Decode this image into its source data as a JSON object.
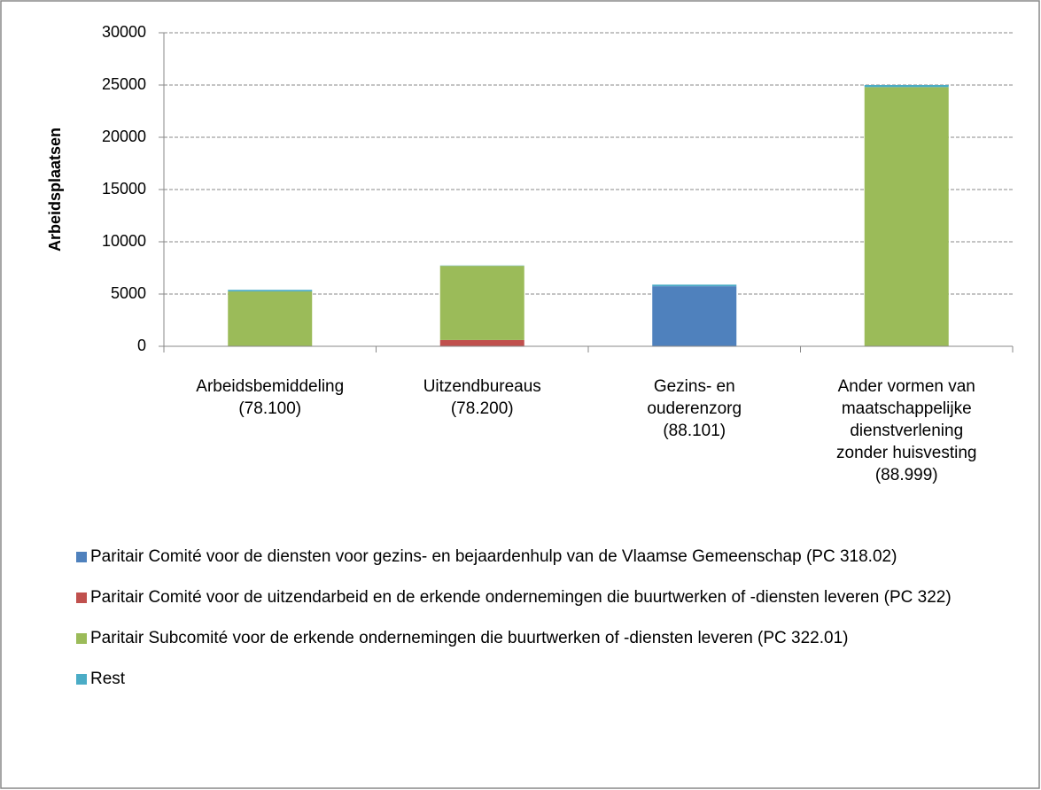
{
  "chart_data": {
    "type": "stacked_bar",
    "y_label": "Arbeidsplaatsen",
    "categories": [
      [
        "Arbeidsbemiddeling",
        "(78.100)"
      ],
      [
        "Uitzendbureaus",
        "(78.200)"
      ],
      [
        "Gezins- en",
        "ouderenzorg",
        "(88.101)"
      ],
      [
        "Ander vormen van",
        "maatschappelijke",
        "dienstverlening",
        "zonder huisvesting",
        "(88.999)"
      ]
    ],
    "series": [
      {
        "name": "Paritair Comité voor de diensten voor gezins- en bejaardenhulp van de Vlaamse Gemeenschap (PC 318.02)",
        "color": "#4f81bd",
        "values": [
          0,
          0,
          5750,
          0
        ]
      },
      {
        "name": "Paritair Comité voor de uitzendarbeid en de erkende ondernemingen die buurtwerken of -diensten leveren (PC 322)",
        "color": "#c0504d",
        "values": [
          0,
          600,
          0,
          0
        ]
      },
      {
        "name": "Paritair Subcomité voor de erkende ondernemingen die buurtwerken of -diensten leveren (PC 322.01)",
        "color": "#9bbb59",
        "values": [
          5250,
          7100,
          0,
          24800
        ]
      },
      {
        "name": "Rest",
        "color": "#4bacc6",
        "values": [
          150,
          30,
          150,
          200
        ]
      }
    ],
    "ylim": [
      0,
      30000
    ],
    "yticks": [
      0,
      5000,
      10000,
      15000,
      20000,
      25000,
      30000
    ],
    "grid": true,
    "legend": "bottom"
  }
}
